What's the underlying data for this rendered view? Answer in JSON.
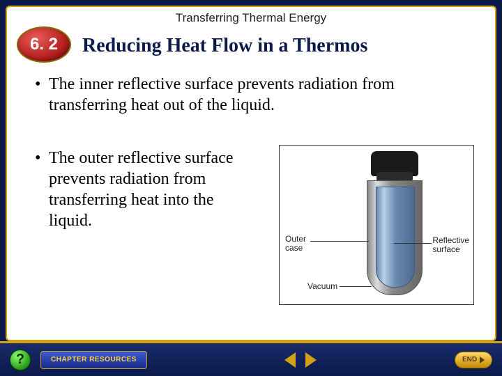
{
  "chapter_header": "Transferring Thermal Energy",
  "section_number": "6. 2",
  "slide_title": "Reducing Heat Flow in a Thermos",
  "bullets": [
    "The inner reflective surface prevents radiation from transferring heat out of the liquid.",
    "The outer reflective surface prevents radiation from transferring heat into the liquid."
  ],
  "diagram": {
    "labels": {
      "outer_case": "Outer\ncase",
      "reflective": "Reflective\nsurface",
      "vacuum": "Vacuum"
    },
    "colors": {
      "cap": "#1a1a1a",
      "outer_metal_light": "#dddddd",
      "outer_metal_dark": "#666666",
      "inner_glass_light": "#b8d0e8",
      "inner_glass_dark": "#4a6a90",
      "label_text": "#222222",
      "leader": "#333333"
    },
    "label_fontsize": 12
  },
  "nav": {
    "help": "?",
    "resources": "CHAPTER RESOURCES",
    "end": "END"
  },
  "colors": {
    "slide_bg": "#0a1a4a",
    "frame_border": "#d4a017",
    "badge_red": "#b82020",
    "title_color": "#0a1a4a",
    "gold": "#d4a017",
    "nav_btn_blue": "#1a2a8a"
  },
  "fonts": {
    "title_size": 28,
    "body_size": 24,
    "header_size": 17
  }
}
